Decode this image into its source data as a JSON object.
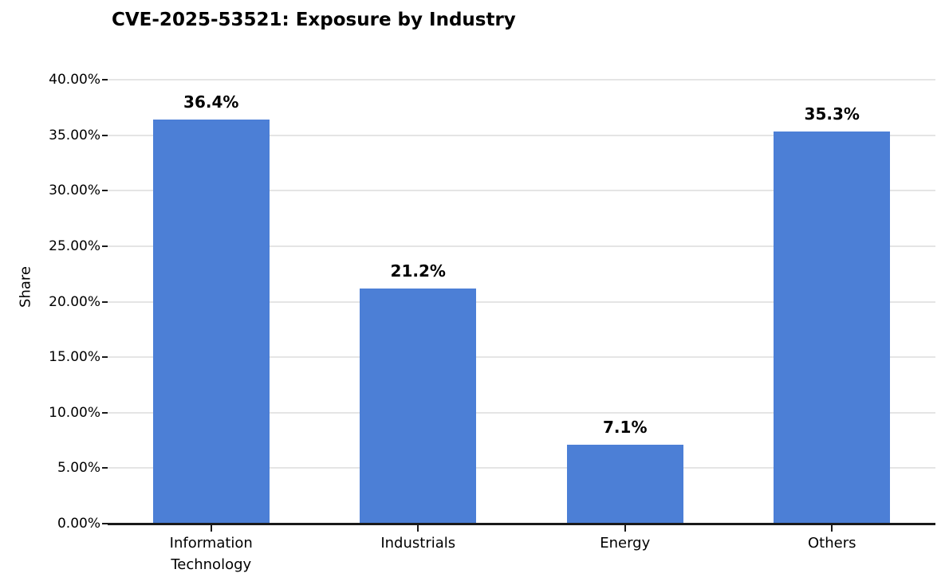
{
  "title": "CVE-2025-53521: Exposure by Industry",
  "colors": {
    "bar": "#4c7fd6",
    "grid": "#e5e5e5",
    "axis": "#1a1a1a",
    "text": "#000000",
    "background": "#ffffff"
  },
  "chart_data": {
    "type": "bar",
    "title": "CVE-2025-53521: Exposure by Industry",
    "categories": [
      "Information Technology",
      "Industrials",
      "Energy",
      "Others"
    ],
    "values": [
      36.4,
      21.2,
      7.1,
      35.3
    ],
    "value_labels": [
      "36.4%",
      "21.2%",
      "7.1%",
      "35.3%"
    ],
    "xlabel": "",
    "ylabel": "Share",
    "ylim": [
      0,
      40
    ],
    "ytick_step": 5,
    "ytick_labels": [
      "0.00%",
      "5.00%",
      "10.00%",
      "15.00%",
      "20.00%",
      "25.00%",
      "30.00%",
      "35.00%",
      "40.00%"
    ],
    "grid": "horizontal",
    "legend": "none",
    "bar_color": "#4c7fd6"
  }
}
